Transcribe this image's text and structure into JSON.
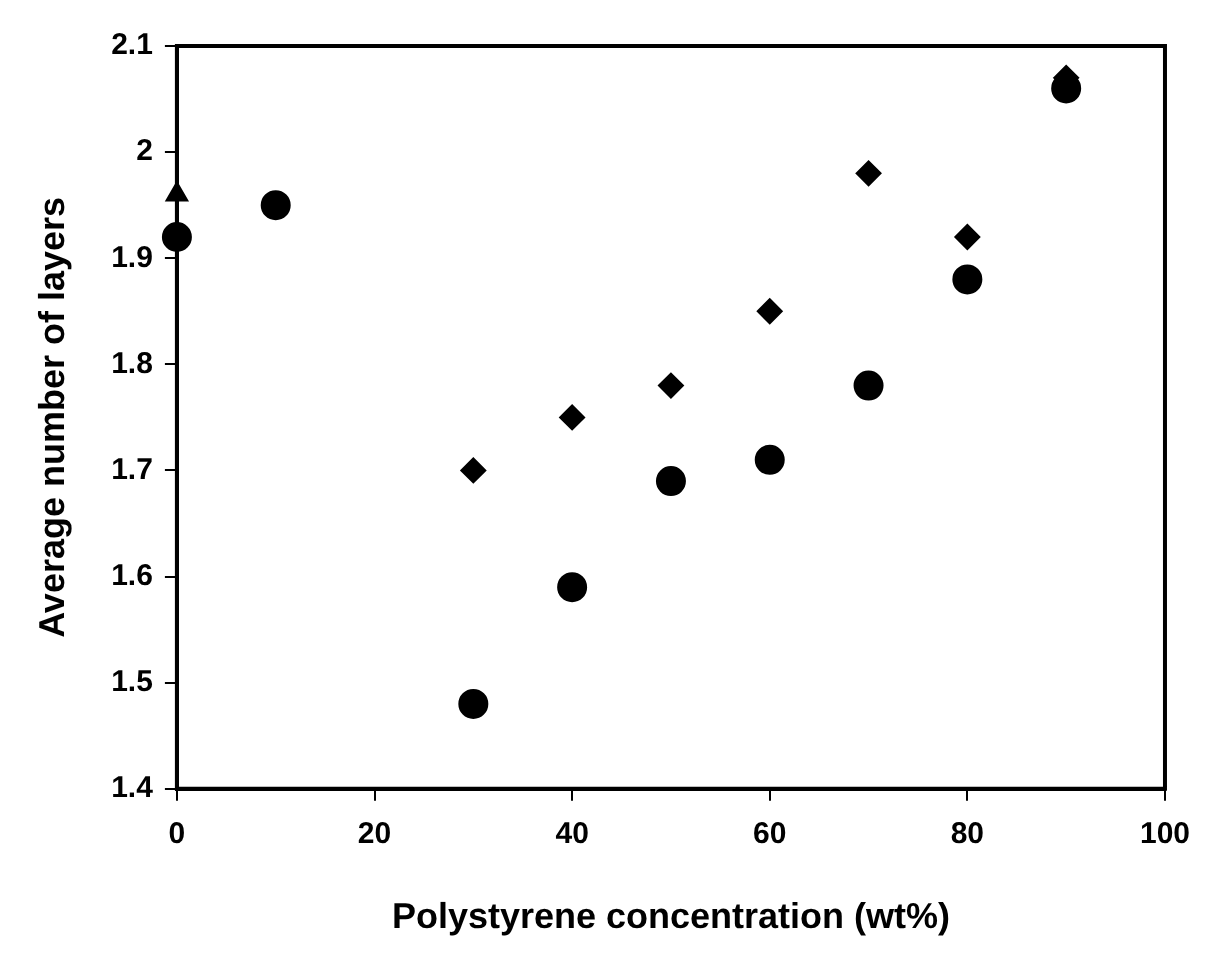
{
  "chart_data": {
    "type": "scatter",
    "xlabel": "Polystyrene concentration (wt%)",
    "ylabel": "Average number of layers",
    "xlim": [
      0,
      100
    ],
    "xticks": [
      0,
      20,
      40,
      60,
      80,
      100
    ],
    "ylim": [
      1.4,
      2.1
    ],
    "yticks": [
      1.4,
      1.5,
      1.6,
      1.7,
      1.8,
      1.9,
      2,
      2.1
    ],
    "grid": false,
    "legend": false,
    "series": [
      {
        "color": "#000000",
        "marker": "circle",
        "x": [
          0,
          10,
          30,
          40,
          50,
          60,
          70,
          80,
          90
        ],
        "values": [
          1.92,
          1.95,
          1.48,
          1.59,
          1.69,
          1.71,
          1.78,
          1.88,
          2.06
        ]
      },
      {
        "color": "#000000",
        "marker": "triangle",
        "x": [
          0
        ],
        "values": [
          1.96
        ]
      },
      {
        "color": "#000000",
        "marker": "diamond",
        "x": [
          30,
          40,
          50,
          60,
          70,
          80,
          90
        ],
        "values": [
          1.7,
          1.75,
          1.78,
          1.85,
          1.98,
          1.92,
          2.07
        ]
      }
    ]
  }
}
